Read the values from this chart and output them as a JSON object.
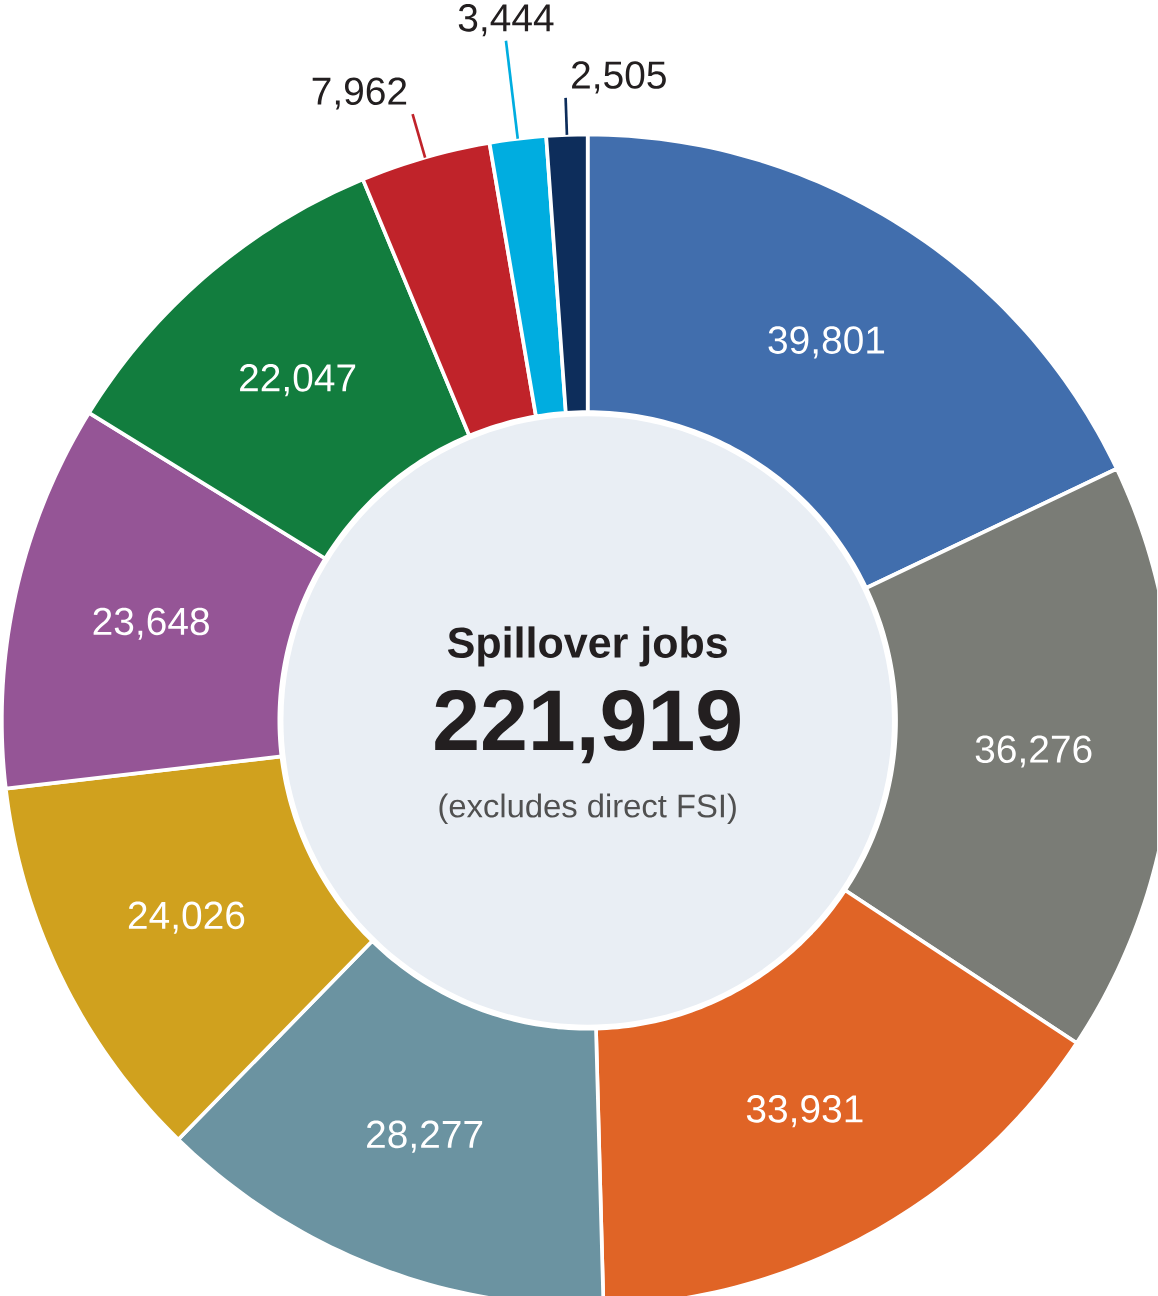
{
  "chart_data": {
    "type": "donut",
    "title": "Spillover jobs",
    "annotations": [
      "221,919",
      "(excludes direct FSI)"
    ],
    "categories": [
      null,
      null,
      null,
      null,
      null,
      null,
      null,
      null,
      null,
      null
    ],
    "values": [
      39801,
      36276,
      33931,
      28277,
      24026,
      23648,
      22047,
      7962,
      3444,
      2505
    ],
    "colors": [
      "#416ead",
      "#7a7c76",
      "#e06426",
      "#6b93a1",
      "#d0a11e",
      "#955596",
      "#127d3e",
      "#c0232a",
      "#00ade0",
      "#0d2d5b"
    ],
    "value_labels": [
      "39,801",
      "36,276",
      "33,931",
      "28,277",
      "24,026",
      "23,648",
      "22,047",
      "7,962",
      "3,444",
      "2,505"
    ]
  }
}
